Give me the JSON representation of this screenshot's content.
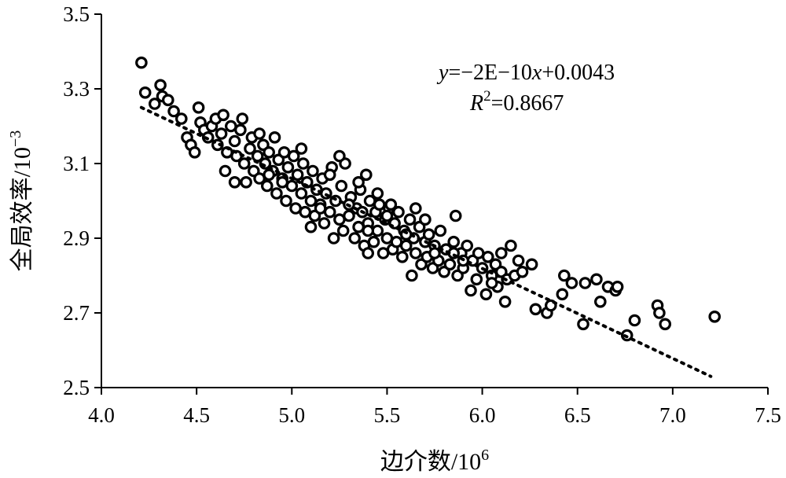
{
  "chart_data": {
    "type": "scatter",
    "title": "",
    "xlabel": "边介数/10",
    "xlabel_sup": "6",
    "ylabel": "全局效率/10",
    "ylabel_sup": "−3",
    "xlim": [
      4.0,
      7.5
    ],
    "ylim": [
      2.5,
      3.5
    ],
    "x_ticks": [
      "4.0",
      "4.5",
      "5.0",
      "5.5",
      "6.0",
      "6.5",
      "7.0",
      "7.5"
    ],
    "y_ticks": [
      "2.5",
      "2.7",
      "2.9",
      "3.1",
      "3.3",
      "3.5"
    ],
    "grid": false,
    "trendline": {
      "style": "dotted",
      "x_start": 4.21,
      "x_end": 7.2,
      "y_start": 3.25,
      "y_end": 2.53
    },
    "equation": {
      "y_var": "y",
      "y_rest": "=−2E−10",
      "x_var": "x",
      "x_rest": "+0.0043",
      "r_var": "R",
      "r_sup": "2",
      "r_rest": "=0.8667"
    },
    "series": [
      {
        "marker": "open-circle",
        "points": [
          [
            4.21,
            3.37
          ],
          [
            4.23,
            3.29
          ],
          [
            4.28,
            3.26
          ],
          [
            4.31,
            3.31
          ],
          [
            4.32,
            3.28
          ],
          [
            4.35,
            3.27
          ],
          [
            4.38,
            3.24
          ],
          [
            4.42,
            3.22
          ],
          [
            4.45,
            3.17
          ],
          [
            4.47,
            3.15
          ],
          [
            4.49,
            3.13
          ],
          [
            4.51,
            3.25
          ],
          [
            4.52,
            3.21
          ],
          [
            4.54,
            3.19
          ],
          [
            4.56,
            3.17
          ],
          [
            4.58,
            3.2
          ],
          [
            4.6,
            3.22
          ],
          [
            4.61,
            3.15
          ],
          [
            4.63,
            3.18
          ],
          [
            4.64,
            3.23
          ],
          [
            4.65,
            3.08
          ],
          [
            4.66,
            3.13
          ],
          [
            4.68,
            3.2
          ],
          [
            4.7,
            3.16
          ],
          [
            4.71,
            3.12
          ],
          [
            4.73,
            3.19
          ],
          [
            4.74,
            3.22
          ],
          [
            4.75,
            3.1
          ],
          [
            4.76,
            3.05
          ],
          [
            4.78,
            3.14
          ],
          [
            4.79,
            3.17
          ],
          [
            4.8,
            3.08
          ],
          [
            4.82,
            3.12
          ],
          [
            4.83,
            3.06
          ],
          [
            4.85,
            3.15
          ],
          [
            4.86,
            3.1
          ],
          [
            4.87,
            3.04
          ],
          [
            4.88,
            3.13
          ],
          [
            4.9,
            3.08
          ],
          [
            4.91,
            3.17
          ],
          [
            4.92,
            3.02
          ],
          [
            4.93,
            3.11
          ],
          [
            4.95,
            3.06
          ],
          [
            4.96,
            3.13
          ],
          [
            4.97,
            3.0
          ],
          [
            4.98,
            3.09
          ],
          [
            5.0,
            3.04
          ],
          [
            5.01,
            3.12
          ],
          [
            5.02,
            2.98
          ],
          [
            5.03,
            3.07
          ],
          [
            5.05,
            3.02
          ],
          [
            5.06,
            3.1
          ],
          [
            5.07,
            2.97
          ],
          [
            5.08,
            3.05
          ],
          [
            5.1,
            3.0
          ],
          [
            5.11,
            3.08
          ],
          [
            5.12,
            2.96
          ],
          [
            5.13,
            3.03
          ],
          [
            5.15,
            2.99
          ],
          [
            5.16,
            3.06
          ],
          [
            5.17,
            2.94
          ],
          [
            5.18,
            3.02
          ],
          [
            5.2,
            2.97
          ],
          [
            5.21,
            3.09
          ],
          [
            5.22,
            2.9
          ],
          [
            5.23,
            3.0
          ],
          [
            5.25,
            2.95
          ],
          [
            5.26,
            3.04
          ],
          [
            5.27,
            2.92
          ],
          [
            5.28,
            3.1
          ],
          [
            5.3,
            2.96
          ],
          [
            5.31,
            3.01
          ],
          [
            5.33,
            2.9
          ],
          [
            5.34,
            2.98
          ],
          [
            5.35,
            2.93
          ],
          [
            5.36,
            3.03
          ],
          [
            5.38,
            2.88
          ],
          [
            5.39,
            3.07
          ],
          [
            5.4,
            2.94
          ],
          [
            5.41,
            3.0
          ],
          [
            5.43,
            2.89
          ],
          [
            5.44,
            2.97
          ],
          [
            5.45,
            2.92
          ],
          [
            5.46,
            2.99
          ],
          [
            5.48,
            2.86
          ],
          [
            5.49,
            2.95
          ],
          [
            5.5,
            2.9
          ],
          [
            5.51,
            2.98
          ],
          [
            5.53,
            2.87
          ],
          [
            5.54,
            2.94
          ],
          [
            5.55,
            2.89
          ],
          [
            5.56,
            2.97
          ],
          [
            5.58,
            2.85
          ],
          [
            5.59,
            2.92
          ],
          [
            5.6,
            2.88
          ],
          [
            5.62,
            2.95
          ],
          [
            5.63,
            2.8
          ],
          [
            5.64,
            2.9
          ],
          [
            5.65,
            2.86
          ],
          [
            5.67,
            2.93
          ],
          [
            5.68,
            2.83
          ],
          [
            5.7,
            2.89
          ],
          [
            5.71,
            2.85
          ],
          [
            5.72,
            2.91
          ],
          [
            5.74,
            2.82
          ],
          [
            5.75,
            2.88
          ],
          [
            5.77,
            2.84
          ],
          [
            5.78,
            2.92
          ],
          [
            5.8,
            2.81
          ],
          [
            5.81,
            2.87
          ],
          [
            5.83,
            2.83
          ],
          [
            5.85,
            2.89
          ],
          [
            5.86,
            2.96
          ],
          [
            5.87,
            2.8
          ],
          [
            5.89,
            2.86
          ],
          [
            5.9,
            2.82
          ],
          [
            5.92,
            2.88
          ],
          [
            5.94,
            2.76
          ],
          [
            5.95,
            2.84
          ],
          [
            5.97,
            2.79
          ],
          [
            5.98,
            2.86
          ],
          [
            6.0,
            2.82
          ],
          [
            6.02,
            2.75
          ],
          [
            6.03,
            2.85
          ],
          [
            6.05,
            2.8
          ],
          [
            6.07,
            2.83
          ],
          [
            6.08,
            2.77
          ],
          [
            6.1,
            2.81
          ],
          [
            6.12,
            2.73
          ],
          [
            6.13,
            2.79
          ],
          [
            6.15,
            2.88
          ],
          [
            6.17,
            2.8
          ],
          [
            6.19,
            2.84
          ],
          [
            6.21,
            2.81
          ],
          [
            6.26,
            2.83
          ],
          [
            6.28,
            2.71
          ],
          [
            6.34,
            2.7
          ],
          [
            6.36,
            2.72
          ],
          [
            6.42,
            2.75
          ],
          [
            6.43,
            2.8
          ],
          [
            6.47,
            2.78
          ],
          [
            6.53,
            2.67
          ],
          [
            6.54,
            2.78
          ],
          [
            6.6,
            2.79
          ],
          [
            6.62,
            2.73
          ],
          [
            6.66,
            2.77
          ],
          [
            6.7,
            2.76
          ],
          [
            6.71,
            2.77
          ],
          [
            6.76,
            2.64
          ],
          [
            6.8,
            2.68
          ],
          [
            6.92,
            2.72
          ],
          [
            6.93,
            2.7
          ],
          [
            6.96,
            2.67
          ],
          [
            7.22,
            2.69
          ],
          [
            5.05,
            3.14
          ],
          [
            4.88,
            3.07
          ],
          [
            5.37,
            2.97
          ],
          [
            5.52,
            2.99
          ],
          [
            5.7,
            2.95
          ],
          [
            4.95,
            3.05
          ],
          [
            5.15,
            2.98
          ],
          [
            5.4,
            2.92
          ],
          [
            5.6,
            2.91
          ],
          [
            5.75,
            2.86
          ],
          [
            5.9,
            2.84
          ],
          [
            6.05,
            2.78
          ],
          [
            4.7,
            3.05
          ],
          [
            5.2,
            3.07
          ],
          [
            5.45,
            3.02
          ],
          [
            5.65,
            2.98
          ],
          [
            5.3,
            2.99
          ],
          [
            4.83,
            3.18
          ],
          [
            5.08,
            3.05
          ],
          [
            5.25,
            3.12
          ],
          [
            5.35,
            3.05
          ],
          [
            5.5,
            2.96
          ],
          [
            5.85,
            2.86
          ],
          [
            6.1,
            2.86
          ],
          [
            5.4,
            2.86
          ],
          [
            5.1,
            2.93
          ]
        ]
      }
    ]
  }
}
